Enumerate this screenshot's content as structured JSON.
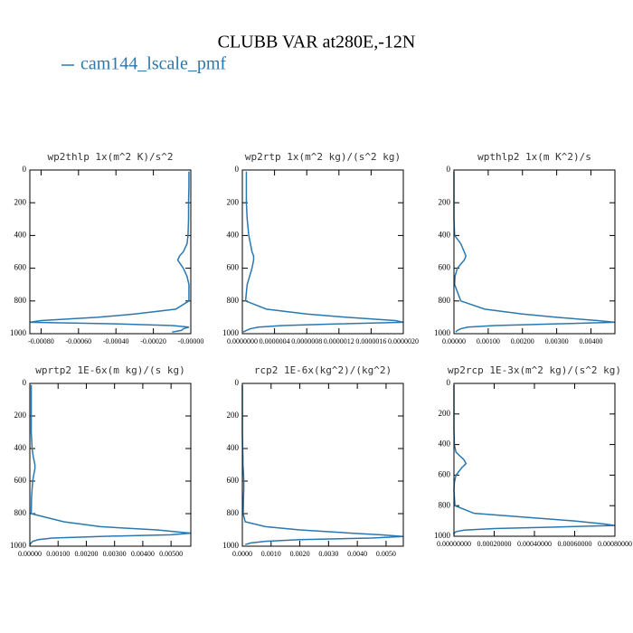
{
  "title": "CLUBB VAR at280E,-12N",
  "chart_data": [
    {
      "type": "line",
      "title": "wp2thlp   1x(m^2 K)/s^2",
      "y": [
        10,
        100,
        200,
        300,
        400,
        450,
        500,
        525,
        550,
        600,
        650,
        700,
        800,
        850,
        880,
        900,
        920,
        930,
        940,
        950,
        960,
        970,
        980,
        990
      ],
      "ylim": [
        0,
        1000
      ],
      "yticks": [
        0,
        200,
        400,
        600,
        800,
        1000
      ],
      "y_inverted": true,
      "xlim": [
        -0.00086,
        0
      ],
      "xticks": [
        {
          "value": -0.0008,
          "label": "-0.00080"
        },
        {
          "value": -0.0006,
          "label": "-0.00060"
        },
        {
          "value": -0.0004,
          "label": "-0.00040"
        },
        {
          "value": -0.0002,
          "label": "-0.00020"
        },
        {
          "value": 0,
          "label": "-0.00000"
        }
      ],
      "series": [
        {
          "name": "cam144_lscale_pmf",
          "color": "#2a78b0",
          "values": [
            -1e-05,
            -1e-05,
            -1.2e-05,
            -1.2e-05,
            -1.5e-05,
            -2e-05,
            -4e-05,
            -6e-05,
            -7e-05,
            -4e-05,
            -2e-05,
            -1e-05,
            -1e-05,
            -8e-05,
            -0.0003,
            -0.0005,
            -0.0008,
            -0.00086,
            -0.0004,
            -0.0001,
            -1e-05,
            -4e-05,
            -5e-05,
            -0.0001
          ]
        }
      ]
    },
    {
      "type": "line",
      "title": "wp2rtp  1x(m^2 kg)/(s^2 kg)",
      "y": [
        10,
        100,
        200,
        300,
        400,
        450,
        500,
        525,
        550,
        600,
        650,
        700,
        800,
        850,
        880,
        900,
        920,
        930,
        940,
        950,
        960,
        970,
        980,
        990
      ],
      "ylim": [
        0,
        1000
      ],
      "yticks": [
        0,
        200,
        400,
        600,
        800,
        1000
      ],
      "y_inverted": true,
      "xlim": [
        0,
        2e-06
      ],
      "xticks": [
        {
          "value": 0,
          "label": "0.0000000"
        },
        {
          "value": 4e-07,
          "label": "0.0000004"
        },
        {
          "value": 8e-07,
          "label": "0.0000008"
        },
        {
          "value": 1.2e-06,
          "label": "0.0000012"
        },
        {
          "value": 1.6e-06,
          "label": "0.0000016"
        },
        {
          "value": 2e-06,
          "label": "0.0000020"
        }
      ],
      "series": [
        {
          "name": "cam144_lscale_pmf",
          "color": "#2a78b0",
          "values": [
            5e-08,
            5e-08,
            5e-08,
            6e-08,
            8e-08,
            1e-07,
            1.2e-07,
            1.4e-07,
            1.4e-07,
            1.2e-07,
            9e-08,
            6e-08,
            4e-08,
            3e-07,
            8e-07,
            1.3e-06,
            1.9e-06,
            2e-06,
            1.2e-06,
            5e-07,
            2e-07,
            1e-07,
            5e-08,
            1e-08
          ]
        }
      ]
    },
    {
      "type": "line",
      "title": "wpthlp2  1x(m K^2)/s",
      "y": [
        10,
        100,
        200,
        300,
        400,
        450,
        500,
        525,
        550,
        600,
        650,
        700,
        800,
        850,
        880,
        900,
        920,
        930,
        940,
        950,
        960,
        970,
        980,
        990
      ],
      "ylim": [
        0,
        1000
      ],
      "yticks": [
        0,
        200,
        400,
        600,
        800,
        1000
      ],
      "y_inverted": true,
      "xlim": [
        0,
        0.0047
      ],
      "xticks": [
        {
          "value": 0,
          "label": "0.00000"
        },
        {
          "value": 0.001,
          "label": "0.00100"
        },
        {
          "value": 0.002,
          "label": "0.00200"
        },
        {
          "value": 0.003,
          "label": "0.00300"
        },
        {
          "value": 0.004,
          "label": "0.00400"
        }
      ],
      "series": [
        {
          "name": "cam144_lscale_pmf",
          "color": "#2a78b0",
          "values": [
            0,
            0,
            0,
            0,
            2e-05,
            0.0002,
            0.0003,
            0.00035,
            0.0003,
            0.0001,
            3e-05,
            2e-05,
            0.0002,
            0.0009,
            0.002,
            0.003,
            0.0042,
            0.0047,
            0.003,
            0.0012,
            0.0004,
            0.0002,
            0.0001,
            5e-05
          ]
        }
      ]
    },
    {
      "type": "line",
      "title": "wprtp2  1E-6x(m kg)/(s kg)",
      "y": [
        10,
        100,
        200,
        300,
        400,
        450,
        500,
        525,
        550,
        600,
        650,
        700,
        800,
        850,
        880,
        900,
        920,
        930,
        940,
        950,
        960,
        970,
        980,
        990
      ],
      "ylim": [
        0,
        1000
      ],
      "yticks": [
        0,
        200,
        400,
        600,
        800,
        1000
      ],
      "y_inverted": true,
      "xlim": [
        0,
        0.0057
      ],
      "xticks": [
        {
          "value": 0,
          "label": "0.00000"
        },
        {
          "value": 0.001,
          "label": "0.00100"
        },
        {
          "value": 0.002,
          "label": "0.00200"
        },
        {
          "value": 0.003,
          "label": "0.00300"
        },
        {
          "value": 0.004,
          "label": "0.00400"
        },
        {
          "value": 0.005,
          "label": "0.00500"
        }
      ],
      "series": [
        {
          "name": "cam144_lscale_pmf",
          "color": "#2a78b0",
          "values": [
            5e-05,
            5e-05,
            5e-05,
            5e-05,
            8e-05,
            0.00012,
            0.00018,
            0.00018,
            0.00015,
            0.0001,
            8e-05,
            6e-05,
            5e-05,
            0.0012,
            0.0025,
            0.0045,
            0.0057,
            0.005,
            0.0025,
            0.0008,
            0.0003,
            0.0001,
            5e-05,
            0
          ]
        }
      ]
    },
    {
      "type": "line",
      "title": "rcp2  1E-6x(kg^2)/(kg^2)",
      "y": [
        10,
        100,
        200,
        300,
        400,
        450,
        500,
        525,
        550,
        600,
        650,
        700,
        800,
        850,
        880,
        900,
        920,
        930,
        940,
        950,
        960,
        970,
        980,
        990
      ],
      "ylim": [
        0,
        1000
      ],
      "yticks": [
        0,
        200,
        400,
        600,
        800,
        1000
      ],
      "y_inverted": true,
      "xlim": [
        0,
        0.0056
      ],
      "xticks": [
        {
          "value": 0,
          "label": "0.0000"
        },
        {
          "value": 0.001,
          "label": "0.0010"
        },
        {
          "value": 0.002,
          "label": "0.0020"
        },
        {
          "value": 0.003,
          "label": "0.0030"
        },
        {
          "value": 0.004,
          "label": "0.0040"
        },
        {
          "value": 0.005,
          "label": "0.0050"
        }
      ],
      "series": [
        {
          "name": "cam144_lscale_pmf",
          "color": "#2a78b0",
          "values": [
            0,
            0,
            0,
            0,
            1e-05,
            2e-05,
            2e-05,
            3e-05,
            4e-05,
            5e-05,
            5e-05,
            4e-05,
            3e-05,
            0.0001,
            0.0008,
            0.002,
            0.0038,
            0.0048,
            0.0056,
            0.0045,
            0.002,
            0.0008,
            0.0003,
            0.0001
          ]
        }
      ]
    },
    {
      "type": "line",
      "title": "wp2rcp  1E-3x(m^2 kg)/(s^2 kg)",
      "y": [
        10,
        100,
        200,
        300,
        400,
        450,
        500,
        525,
        550,
        600,
        650,
        700,
        800,
        850,
        880,
        900,
        920,
        930,
        940,
        950,
        960,
        970,
        980,
        990
      ],
      "ylim": [
        0,
        1000
      ],
      "yticks": [
        0,
        200,
        400,
        600,
        800,
        1000
      ],
      "y_inverted": true,
      "xlim": [
        0,
        0.0008
      ],
      "xticks": [
        {
          "value": 0,
          "label": "0.00000000"
        },
        {
          "value": 0.0002,
          "label": "0.00020000"
        },
        {
          "value": 0.0004,
          "label": "0.00040000"
        },
        {
          "value": 0.0006,
          "label": "0.00060000"
        },
        {
          "value": 0.0008,
          "label": "0.00080000"
        }
      ],
      "series": [
        {
          "name": "cam144_lscale_pmf",
          "color": "#2a78b0",
          "values": [
            0,
            0,
            0,
            0,
            2e-06,
            1e-05,
            5e-05,
            6e-05,
            4e-05,
            1e-05,
            2e-06,
            0,
            5e-06,
            0.0001,
            0.0004,
            0.0006,
            0.00075,
            0.0008,
            0.0005,
            0.0002,
            5e-05,
            1e-05,
            0,
            0
          ]
        }
      ]
    }
  ]
}
